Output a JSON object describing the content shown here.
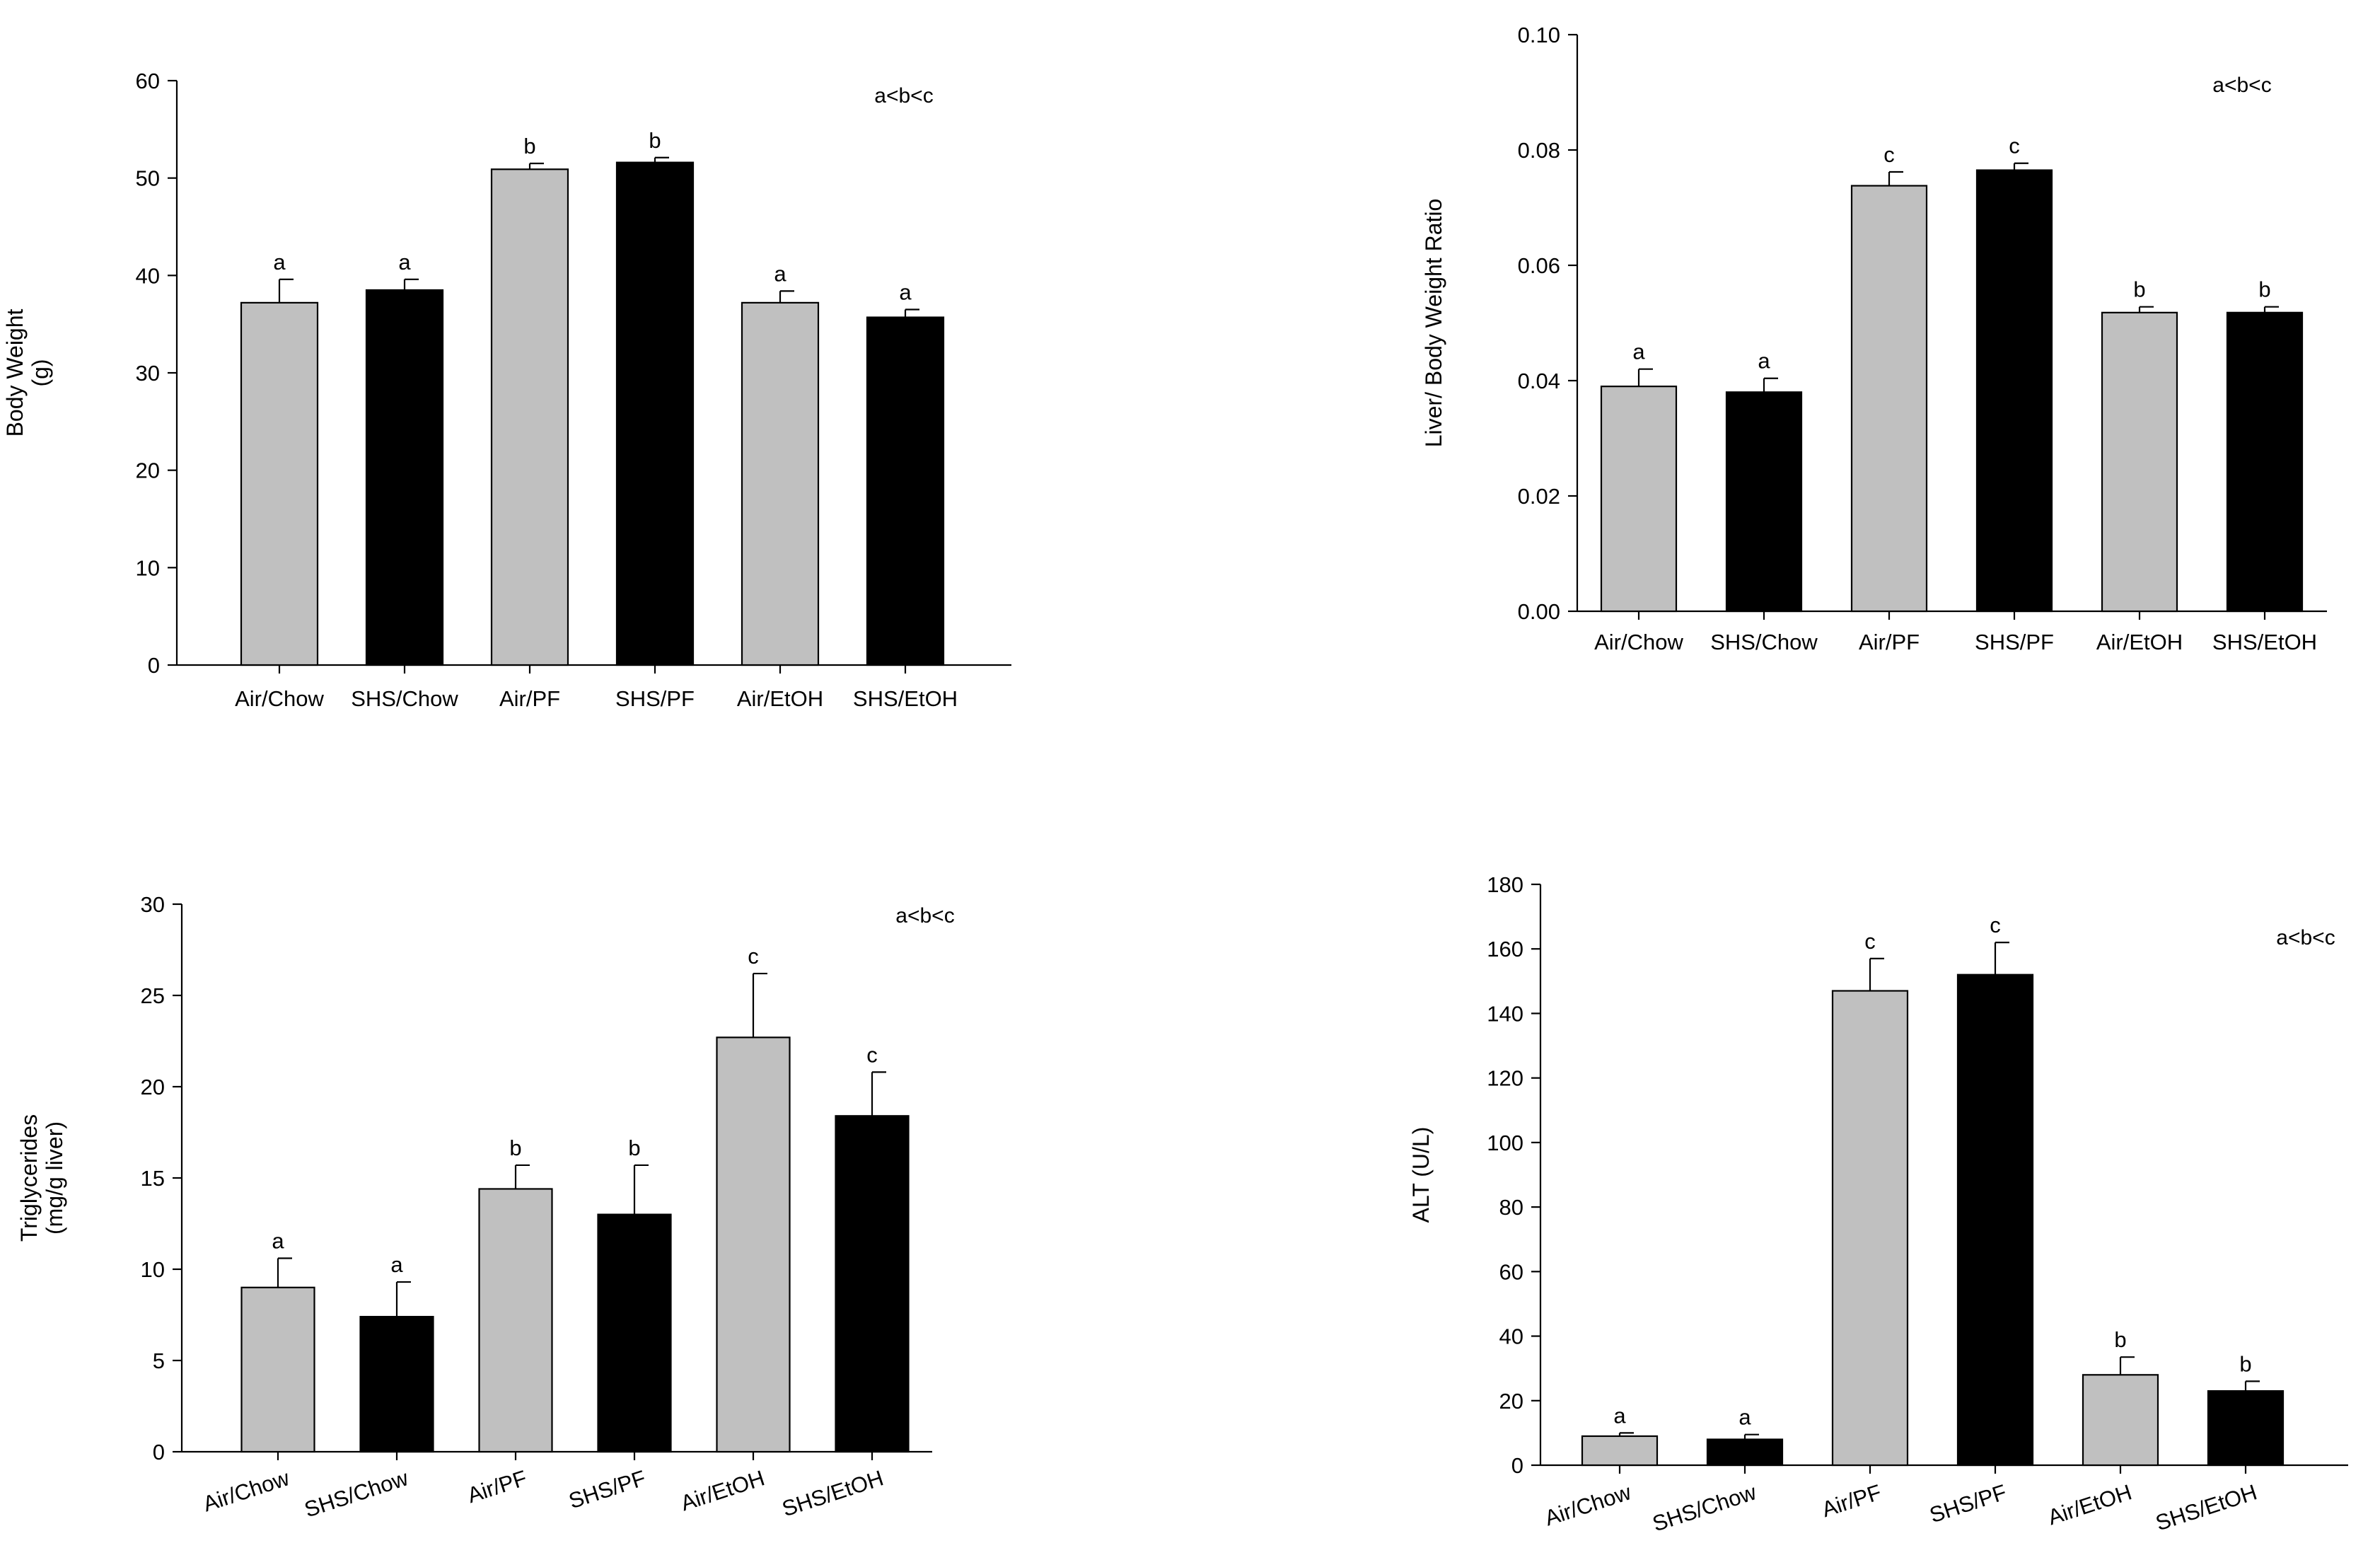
{
  "colors": {
    "light_bar": "#c0c0c0",
    "dark_bar": "#000000"
  },
  "chart_data": [
    {
      "id": "body-weight",
      "type": "bar",
      "title": "",
      "ylabel": [
        "Body Weight",
        "(g)"
      ],
      "xlabel": "",
      "categories": [
        "Air/Chow",
        "SHS/Chow",
        "Air/PF",
        "SHS/PF",
        "Air/EtOH",
        "SHS/EtOH"
      ],
      "values": [
        37.2,
        38.5,
        50.9,
        51.6,
        37.2,
        35.7
      ],
      "errors": [
        2.4,
        1.1,
        0.6,
        0.5,
        1.2,
        0.8
      ],
      "letters": [
        "a",
        "a",
        "b",
        "b",
        "a",
        "a"
      ],
      "bar_colors": [
        "light",
        "dark",
        "light",
        "dark",
        "light",
        "dark"
      ],
      "yticks": [
        "0",
        "10",
        "20",
        "30",
        "40",
        "50",
        "60"
      ],
      "ylim": [
        0,
        60
      ],
      "annotation": "a<b<c",
      "rotated_labels": false,
      "grid": false
    },
    {
      "id": "liver-body-weight-ratio",
      "type": "bar",
      "title": "",
      "ylabel": [
        "Liver/ Body Weight Ratio"
      ],
      "xlabel": "",
      "categories": [
        "Air/Chow",
        "SHS/Chow",
        "Air/PF",
        "SHS/PF",
        "Air/EtOH",
        "SHS/EtOH"
      ],
      "values": [
        0.039,
        0.038,
        0.0738,
        0.0765,
        0.0518,
        0.0518
      ],
      "errors": [
        0.003,
        0.0024,
        0.0024,
        0.0012,
        0.001,
        0.001
      ],
      "letters": [
        "a",
        "a",
        "c",
        "c",
        "b",
        "b"
      ],
      "bar_colors": [
        "light",
        "dark",
        "light",
        "dark",
        "light",
        "dark"
      ],
      "yticks": [
        "0.00",
        "0.02",
        "0.04",
        "0.06",
        "0.08",
        "0.10"
      ],
      "ylim": [
        0,
        0.1
      ],
      "annotation": "a<b<c",
      "rotated_labels": false,
      "grid": false
    },
    {
      "id": "triglycerides",
      "type": "bar",
      "title": "",
      "ylabel": [
        "Triglycerides",
        "(mg/g liver)"
      ],
      "xlabel": "",
      "categories": [
        "Air/Chow",
        "SHS/Chow",
        "Air/PF",
        "SHS/PF",
        "Air/EtOH",
        "SHS/EtOH"
      ],
      "values": [
        9.0,
        7.4,
        14.4,
        13.0,
        22.7,
        18.4
      ],
      "errors": [
        1.6,
        1.9,
        1.3,
        2.7,
        3.5,
        2.4
      ],
      "letters": [
        "a",
        "a",
        "b",
        "b",
        "c",
        "c"
      ],
      "bar_colors": [
        "light",
        "dark",
        "light",
        "dark",
        "light",
        "dark"
      ],
      "yticks": [
        "0",
        "5",
        "10",
        "15",
        "20",
        "25",
        "30"
      ],
      "ylim": [
        0,
        30
      ],
      "annotation": "a<b<c",
      "rotated_labels": true,
      "grid": false
    },
    {
      "id": "alt",
      "type": "bar",
      "title": "",
      "ylabel": [
        "ALT (U/L)"
      ],
      "xlabel": "",
      "categories": [
        "Air/Chow",
        "SHS/Chow",
        "Air/PF",
        "SHS/PF",
        "Air/EtOH",
        "SHS/EtOH"
      ],
      "values": [
        9,
        8,
        147,
        152,
        28,
        23
      ],
      "errors": [
        1,
        1.5,
        10,
        10,
        5.5,
        3
      ],
      "letters": [
        "a",
        "a",
        "c",
        "c",
        "b",
        "b"
      ],
      "bar_colors": [
        "light",
        "dark",
        "light",
        "dark",
        "light",
        "dark"
      ],
      "yticks": [
        "0",
        "20",
        "40",
        "60",
        "80",
        "100",
        "120",
        "140",
        "160",
        "180"
      ],
      "ylim": [
        0,
        180
      ],
      "annotation": "a<b<c",
      "rotated_labels": true,
      "grid": false
    }
  ]
}
